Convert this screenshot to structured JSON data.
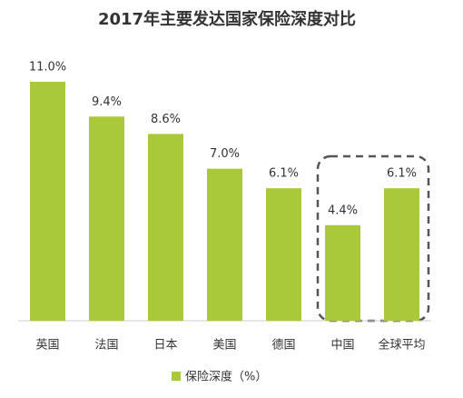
{
  "chart_data": {
    "type": "bar",
    "title": "2017年主要发达国家保险深度对比",
    "categories": [
      "英国",
      "法国",
      "日本",
      "美国",
      "德国",
      "中国",
      "全球平均"
    ],
    "series": [
      {
        "name": "保险深度（%）",
        "color": "#a9c93a",
        "values": [
          11.0,
          9.4,
          8.6,
          7.0,
          6.1,
          4.4,
          6.1
        ],
        "value_labels": [
          "11.0%",
          "9.4%",
          "8.6%",
          "7.0%",
          "6.1%",
          "4.4%",
          "6.1%"
        ]
      }
    ]
  }
}
